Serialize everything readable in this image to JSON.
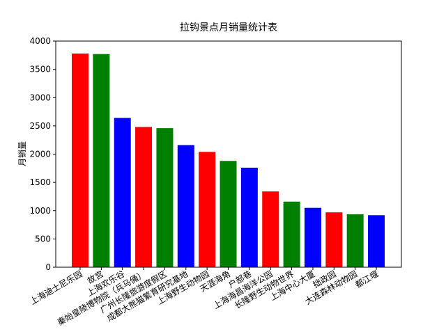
{
  "chart_data": {
    "type": "bar",
    "title": "拉钩景点月销量统计表",
    "y_label": "月销量",
    "categories": [
      "上海迪士尼乐园",
      "故宫",
      "上海欢乐谷",
      "秦始皇陵博物院（兵马俑）",
      "广州长隆旅游度假区",
      "成都大熊猫繁育研究基地",
      "上海野生动物园",
      "天涯海角",
      "户部巷",
      "上海海昌海洋公园",
      "长隆野生动物世界",
      "上海中心大厦",
      "拙政园",
      "大连森林动物园",
      "都江堰"
    ],
    "values": [
      3780,
      3770,
      2640,
      2480,
      2460,
      2160,
      2040,
      1880,
      1760,
      1340,
      1160,
      1050,
      970,
      935,
      920
    ],
    "colors": [
      "red",
      "green",
      "blue",
      "red",
      "green",
      "blue",
      "red",
      "green",
      "blue",
      "red",
      "green",
      "blue",
      "red",
      "green",
      "blue"
    ],
    "ylim": [
      0,
      4000
    ],
    "yticks": [
      0,
      500,
      1000,
      1500,
      2000,
      2500,
      3000,
      3500,
      4000
    ]
  }
}
